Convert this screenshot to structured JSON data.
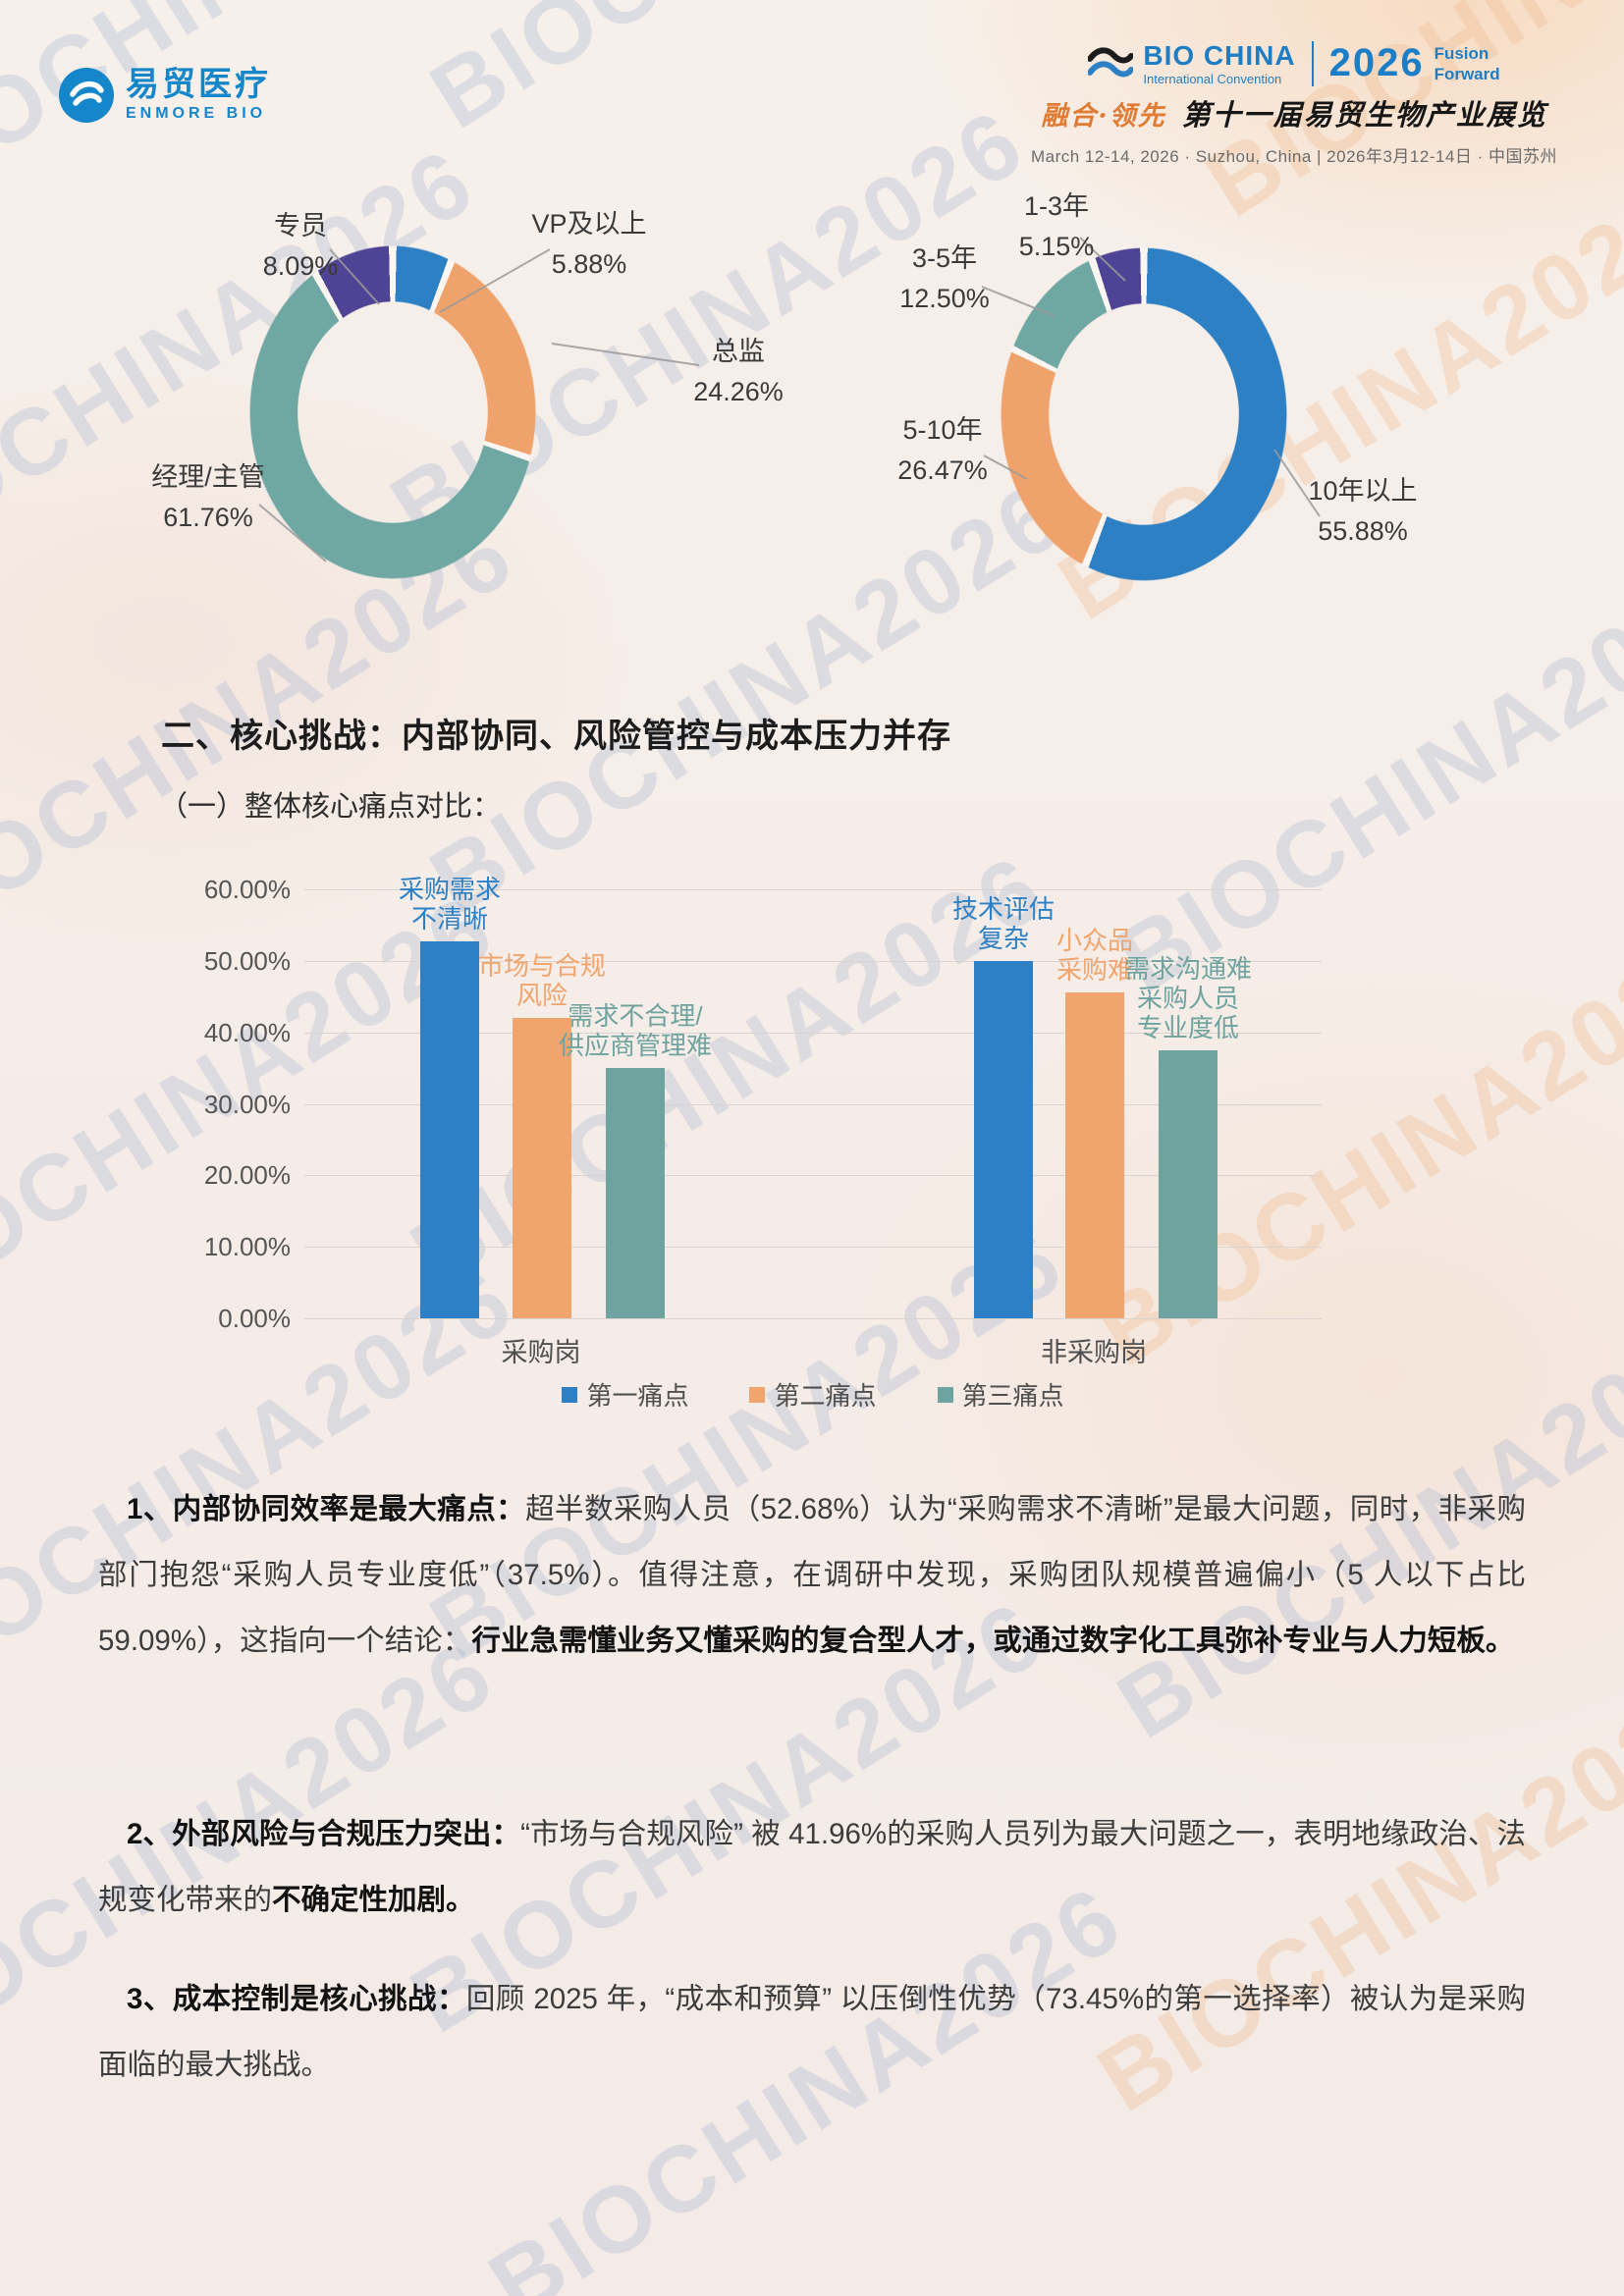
{
  "page": {
    "watermark_text": "BIOCHINA2026"
  },
  "header": {
    "enmore": {
      "name_cn": "易贸医疗",
      "name_en": "ENMORE BIO"
    },
    "biochina": {
      "brand": "BIO CHINA",
      "brand_sub": "International Convention",
      "year": "2026",
      "tagline_line1": "Fusion",
      "tagline_line2": "Forward",
      "slogan_cn": "融合·领先",
      "event_title_cn": "第十一届易贸生物产业展览",
      "date_line": "March 12-14, 2026 · Suzhou, China | 2026年3月12-14日 · 中国苏州"
    }
  },
  "section": {
    "title": "二、核心挑战：内部协同、风险管控与成本压力并存",
    "subtitle": "（一）整体核心痛点对比："
  },
  "chart_data": [
    {
      "type": "donut",
      "series": [
        {
          "label": "VP及以上",
          "value": 5.88,
          "pct": "5.88%",
          "color": "#2e80c4"
        },
        {
          "label": "总监",
          "value": 24.26,
          "pct": "24.26%",
          "color": "#efa26b"
        },
        {
          "label": "经理/主管",
          "value": 61.76,
          "pct": "61.76%",
          "color": "#6fa7a3"
        },
        {
          "label": "专员",
          "value": 8.09,
          "pct": "8.09%",
          "color": "#4e4394"
        }
      ]
    },
    {
      "type": "donut",
      "series": [
        {
          "label": "10年以上",
          "value": 55.88,
          "pct": "55.88%",
          "color": "#2e80c4"
        },
        {
          "label": "5-10年",
          "value": 26.47,
          "pct": "26.47%",
          "color": "#efa26b"
        },
        {
          "label": "3-5年",
          "value": 12.5,
          "pct": "12.50%",
          "color": "#6fa7a3"
        },
        {
          "label": "1-3年",
          "value": 5.15,
          "pct": "5.15%",
          "color": "#4e4394"
        }
      ]
    },
    {
      "type": "bar",
      "categories": [
        "采购岗",
        "非采购岗"
      ],
      "ylim": [
        0,
        60
      ],
      "ytick_labels": [
        "60.00%",
        "50.00%",
        "40.00%",
        "30.00%",
        "20.00%",
        "10.00%",
        "0.00%"
      ],
      "grid": true,
      "legend_position": "bottom",
      "series": [
        {
          "name": "第一痛点",
          "color": "#2e80c4",
          "values": [
            52.68,
            50.0
          ],
          "bar_labels": [
            [
              "采购需求",
              "不清晰"
            ],
            [
              "技术评估",
              "复杂"
            ]
          ]
        },
        {
          "name": "第二痛点",
          "color": "#f0a56e",
          "values": [
            41.96,
            45.6
          ],
          "bar_labels": [
            [
              "市场与合规",
              "风险"
            ],
            [
              "小众品",
              "采购难"
            ]
          ]
        },
        {
          "name": "第三痛点",
          "color": "#6fa39f",
          "values": [
            35.0,
            37.5
          ],
          "bar_labels": [
            [
              "需求不合理/",
              "供应商管理难"
            ],
            [
              "需求沟通难",
              "采购人员",
              "专业度低"
            ]
          ]
        }
      ]
    }
  ],
  "paragraphs": [
    {
      "segments": [
        {
          "text": "1、内部协同效率是最大痛点：",
          "bold": true
        },
        {
          "text": "超半数采购人员（52.68%）认为“采购需求不清晰”是最大问题，同时，非采购部门抱怨“采购人员专业度低”（37.5%）。值得注意，在调研中发现，采购团队规模普遍偏小（5 人以下占比 59.09%），这指向一个结论：",
          "bold": false
        },
        {
          "text": "行业急需懂业务又懂采购的复合型人才，或通过数字化工具弥补专业与人力短板。",
          "bold": true
        }
      ]
    },
    {
      "segments": [
        {
          "text": "2、外部风险与合规压力突出：",
          "bold": true
        },
        {
          "text": "“市场与合规风险” 被 41.96%的采购人员列为最大问题之一，表明地缘政治、法规变化带来的",
          "bold": false
        },
        {
          "text": "不确定性加剧。",
          "bold": true
        }
      ]
    },
    {
      "segments": [
        {
          "text": "3、成本控制是核心挑战：",
          "bold": true
        },
        {
          "text": "回顾 2025 年，“成本和预算” 以压倒性优势（73.45%的第一选择率）被认为是采购面临的最大挑战。",
          "bold": false
        }
      ]
    }
  ]
}
